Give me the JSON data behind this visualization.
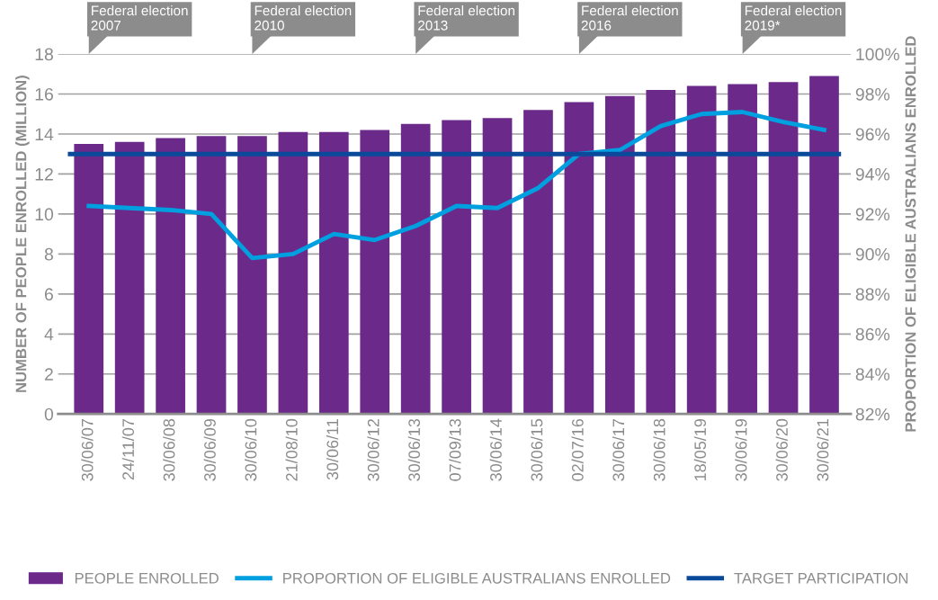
{
  "chart_data": {
    "type": "bar",
    "ylabel": "NUMBER OF PEOPLE ENROLLED (MILLION)",
    "y2label": "PROPORTION OF ELIGIBLE AUSTRALIANS ENROLLED",
    "categories": [
      "30/06/07",
      "24/11/07",
      "30/06/08",
      "30/06/09",
      "30/06/10",
      "21/08/10",
      "30/06/11",
      "30/06/12",
      "30/06/13",
      "07/09/13",
      "30/06/14",
      "30/06/15",
      "02/07/16",
      "30/06/17",
      "30/06/18",
      "18/05/19",
      "30/06/19",
      "30/06/20",
      "30/06/21"
    ],
    "series": [
      {
        "name": "PEOPLE ENROLLED",
        "color": "#6b2a8a",
        "values": [
          13.5,
          13.6,
          13.8,
          13.9,
          13.9,
          14.1,
          14.1,
          14.2,
          14.5,
          14.7,
          14.8,
          15.2,
          15.6,
          15.9,
          16.2,
          16.4,
          16.5,
          16.6,
          16.9
        ]
      },
      {
        "name": "PROPORTION OF ELIGIBLE AUSTRALIANS ENROLLED",
        "type": "line",
        "axis": "y2",
        "color": "#009fdf",
        "values": [
          92.4,
          92.3,
          92.2,
          92.0,
          89.8,
          90.0,
          91.0,
          90.7,
          91.4,
          92.4,
          92.3,
          93.3,
          95.0,
          95.2,
          96.4,
          97.0,
          97.1,
          96.6,
          96.2
        ]
      }
    ],
    "ylim": [
      0,
      18
    ],
    "yticks": [
      0,
      2,
      4,
      6,
      8,
      10,
      12,
      14,
      16,
      18
    ],
    "y2lim": [
      82,
      100
    ],
    "y2ticks": [
      {
        "value": 82,
        "label": "82%"
      },
      {
        "value": 84,
        "label": "84%"
      },
      {
        "value": 86,
        "label": "86%"
      },
      {
        "value": 88,
        "label": "88%"
      },
      {
        "value": 90,
        "label": "90%"
      },
      {
        "value": 92,
        "label": "92%"
      },
      {
        "value": 94,
        "label": "94%"
      },
      {
        "value": 96,
        "label": "96%"
      },
      {
        "value": 98,
        "label": "98%"
      },
      {
        "value": 100,
        "label": "100%"
      }
    ],
    "ref_lines": [
      {
        "axis": "y2",
        "value": 95,
        "label": "TARGET PARTICIPATION",
        "color": "#0b4a9b"
      }
    ],
    "annotations": [
      "Federal election\n2007",
      "Federal election\n2010",
      "Federal election\n2013",
      "Federal election\n2016",
      "Federal election\n2019*"
    ],
    "grid": "y",
    "legend": "bottom"
  }
}
